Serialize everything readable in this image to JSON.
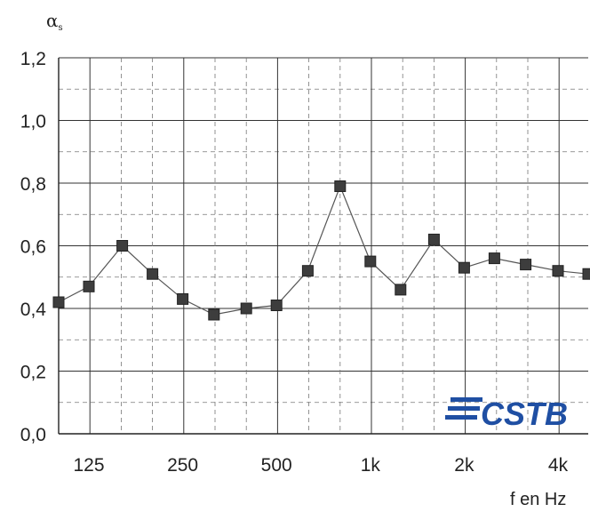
{
  "chart_data": {
    "type": "line",
    "ylabel_symbol": "α",
    "ylabel_subscript": "s",
    "xlabel": "f en Hz",
    "ylim": [
      0,
      1.2
    ],
    "y_ticks": [
      "0,0",
      "0,2",
      "0,4",
      "0,6",
      "0,8",
      "1,0",
      "1,2"
    ],
    "y_tick_values": [
      0,
      0.2,
      0.4,
      0.6,
      0.8,
      1.0,
      1.2
    ],
    "x": [
      100,
      125,
      160,
      200,
      250,
      315,
      400,
      500,
      630,
      800,
      1000,
      1250,
      1600,
      2000,
      2500,
      3150,
      4000,
      5000
    ],
    "x_tick_labels": [
      {
        "label": "125",
        "at": 125
      },
      {
        "label": "250",
        "at": 250
      },
      {
        "label": "500",
        "at": 500
      },
      {
        "label": "1k",
        "at": 1000
      },
      {
        "label": "2k",
        "at": 2000
      },
      {
        "label": "4k",
        "at": 4000
      }
    ],
    "series": [
      {
        "values": [
          0.42,
          0.47,
          0.6,
          0.51,
          0.43,
          0.38,
          0.4,
          0.41,
          0.52,
          0.79,
          0.55,
          0.46,
          0.62,
          0.53,
          0.56,
          0.54,
          0.52,
          0.51
        ]
      }
    ],
    "grid": true,
    "colors": {
      "line": "#555555",
      "marker": "#3d3d3d",
      "grid_major": "#333333",
      "grid_minor": "#777777",
      "logo": "#1f4fa3"
    }
  },
  "logo": {
    "text": "CSTB"
  }
}
